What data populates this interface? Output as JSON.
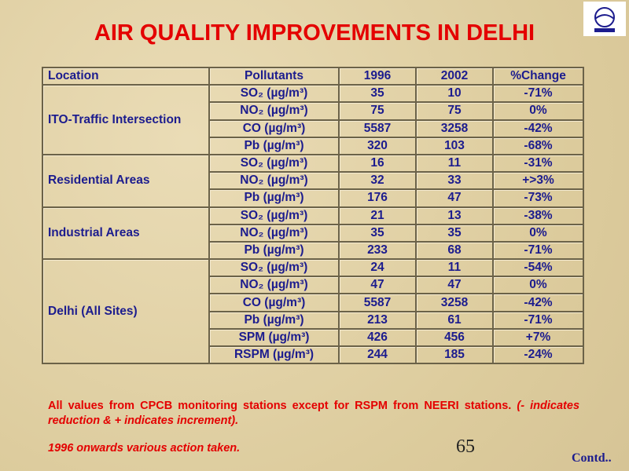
{
  "title": "AIR QUALITY IMPROVEMENTS IN DELHI",
  "table": {
    "header": [
      "Location",
      "Pollutants",
      "1996",
      "2002",
      "%Change"
    ],
    "groups": [
      {
        "location": "ITO-Traffic Intersection",
        "rows": [
          [
            "SO₂ (µg/m³)",
            35,
            10,
            "-71%"
          ],
          [
            "NO₂ (µg/m³)",
            75,
            75,
            "0%"
          ],
          [
            "CO (µg/m³)",
            5587,
            3258,
            "-42%"
          ],
          [
            "Pb (µg/m³)",
            320,
            103,
            "-68%"
          ]
        ]
      },
      {
        "location": "Residential Areas",
        "rows": [
          [
            "SO₂ (µg/m³)",
            16,
            11,
            "-31%"
          ],
          [
            "NO₂ (µg/m³)",
            32,
            33,
            "+>3%"
          ],
          [
            "Pb (µg/m³)",
            176,
            47,
            "-73%"
          ]
        ]
      },
      {
        "location": "Industrial Areas",
        "rows": [
          [
            "SO₂ (µg/m³)",
            21,
            13,
            "-38%"
          ],
          [
            "NO₂ (µg/m³)",
            35,
            35,
            "0%"
          ],
          [
            "Pb (µg/m³)",
            233,
            68,
            "-71%"
          ]
        ]
      },
      {
        "location": "Delhi (All Sites)",
        "rows": [
          [
            "SO₂ (µg/m³)",
            24,
            11,
            "-54%"
          ],
          [
            "NO₂ (µg/m³)",
            47,
            47,
            "0%"
          ],
          [
            "CO (µg/m³)",
            5587,
            3258,
            "-42%"
          ],
          [
            "Pb (µg/m³)",
            213,
            61,
            "-71%"
          ],
          [
            "SPM (µg/m³)",
            426,
            456,
            "+7%"
          ],
          [
            "RSPM (µg/m³)",
            244,
            185,
            "-24%"
          ]
        ]
      }
    ]
  },
  "notes": {
    "line1": "All values from CPCB monitoring stations except for RSPM from NEERI stations.",
    "legend": "(- indicates reduction &  + indicates increment).",
    "action": "1996 onwards various action taken."
  },
  "page_number": "65",
  "contd": "Contd.."
}
